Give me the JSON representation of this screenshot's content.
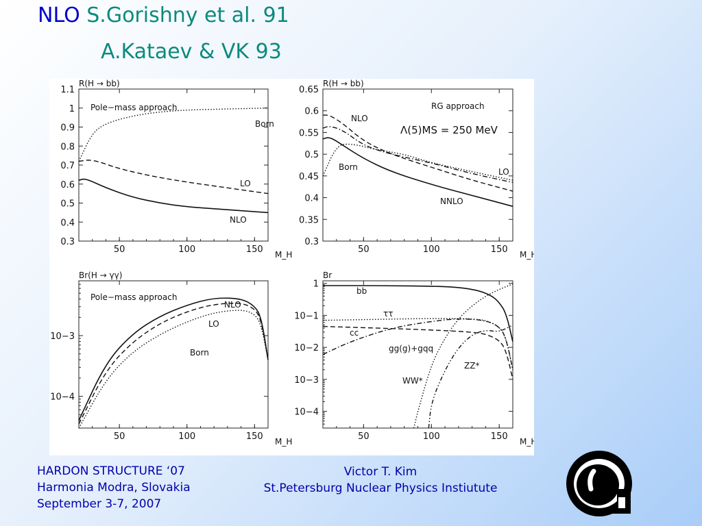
{
  "slide": {
    "title_main": "NLO",
    "title_ref1": "S.Gorishny et al. 91",
    "title_ref2": "A.Kataev & VK 93",
    "footer_left": [
      "HARDON STRUCTURE ‘07",
      "Harmonia Modra, Slovakia",
      "September 3-7, 2007"
    ],
    "footer_center": [
      "Victor T.  Kim",
      "St.Petersburg Nuclear Physics Instiutute"
    ],
    "logo_icon": "institute-logo-icon"
  },
  "chart_data": [
    {
      "type": "line",
      "title": "R(H → bb)",
      "xlabel": "M_H",
      "xlim": [
        20,
        160
      ],
      "ylim": [
        0.3,
        1.1
      ],
      "yscale": "linear",
      "x_ticks": [
        50,
        100,
        150
      ],
      "y_ticks": [
        0.3,
        0.4,
        0.5,
        0.6,
        0.7,
        0.8,
        0.9,
        1.0,
        1.1
      ],
      "y_tick_labels": [
        "0.3",
        "0.4",
        "0.5",
        "0.6",
        "0.7",
        "0.8",
        "0.9",
        "1",
        "1.1"
      ],
      "annotation": "Pole−mass approach",
      "series": [
        {
          "name": "Born",
          "style": "dotted",
          "x": [
            20,
            30,
            40,
            60,
            80,
            100,
            130,
            160
          ],
          "y": [
            0.72,
            0.87,
            0.92,
            0.96,
            0.98,
            0.99,
            0.995,
            1.0
          ]
        },
        {
          "name": "LO",
          "style": "dashed",
          "x": [
            20,
            30,
            50,
            75,
            100,
            130,
            160
          ],
          "y": [
            0.72,
            0.73,
            0.68,
            0.64,
            0.61,
            0.58,
            0.55
          ]
        },
        {
          "name": "NLO",
          "style": "solid",
          "x": [
            20,
            25,
            40,
            60,
            80,
            100,
            130,
            160
          ],
          "y": [
            0.62,
            0.63,
            0.58,
            0.53,
            0.5,
            0.48,
            0.465,
            0.45
          ]
        }
      ]
    },
    {
      "type": "line",
      "title": "R(H → bb)",
      "xlabel": "M_H",
      "xlim": [
        20,
        160
      ],
      "ylim": [
        0.3,
        0.65
      ],
      "yscale": "linear",
      "x_ticks": [
        50,
        100,
        150
      ],
      "y_ticks": [
        0.3,
        0.35,
        0.4,
        0.45,
        0.5,
        0.55,
        0.6,
        0.65
      ],
      "y_tick_labels": [
        "0.3",
        "0.35",
        "0.4",
        "0.45",
        "0.5",
        "0.55",
        "0.6",
        "0.65"
      ],
      "annotation": "RG approach",
      "annotation2": "Λ(5)MS = 250 MeV",
      "series": [
        {
          "name": "NLO",
          "style": "dashed",
          "x": [
            20,
            25,
            35,
            50,
            70,
            100,
            130,
            160
          ],
          "y": [
            0.59,
            0.59,
            0.57,
            0.53,
            0.5,
            0.47,
            0.44,
            0.415
          ]
        },
        {
          "name": "LO",
          "style": "dashdot",
          "x": [
            20,
            25,
            35,
            50,
            70,
            100,
            130,
            160
          ],
          "y": [
            0.56,
            0.565,
            0.555,
            0.52,
            0.5,
            0.48,
            0.455,
            0.435
          ]
        },
        {
          "name": "Born",
          "style": "dotted",
          "x": [
            20,
            30,
            40,
            60,
            80,
            100,
            130,
            160
          ],
          "y": [
            0.45,
            0.52,
            0.525,
            0.51,
            0.5,
            0.48,
            0.46,
            0.44
          ]
        },
        {
          "name": "NNLO",
          "style": "solid",
          "x": [
            20,
            25,
            35,
            50,
            70,
            100,
            130,
            160
          ],
          "y": [
            0.535,
            0.54,
            0.52,
            0.49,
            0.46,
            0.43,
            0.405,
            0.38
          ]
        }
      ]
    },
    {
      "type": "line",
      "title": "Br(H → γγ)",
      "xlabel": "M_H",
      "xlim": [
        20,
        160
      ],
      "ylim": [
        3e-05,
        0.008
      ],
      "yscale": "log",
      "x_ticks": [
        50,
        100,
        150
      ],
      "y_ticks": [
        0.001,
        0.0001
      ],
      "y_tick_labels": [
        "10−3",
        "10−4"
      ],
      "annotation": "Pole−mass approach",
      "series": [
        {
          "name": "NLO",
          "style": "solid",
          "x": [
            20,
            40,
            60,
            80,
            100,
            120,
            140,
            150,
            155,
            160
          ],
          "y": [
            4e-05,
            0.00036,
            0.0011,
            0.0021,
            0.0032,
            0.0042,
            0.0041,
            0.0031,
            0.002,
            0.0004
          ]
        },
        {
          "name": "LO",
          "style": "dashed",
          "x": [
            20,
            40,
            60,
            80,
            100,
            120,
            140,
            150,
            155,
            160
          ],
          "y": [
            3.5e-05,
            0.00027,
            0.0008,
            0.0016,
            0.0025,
            0.0033,
            0.0035,
            0.0028,
            0.0018,
            0.0004
          ]
        },
        {
          "name": "Born",
          "style": "dotted",
          "x": [
            20,
            40,
            60,
            80,
            100,
            120,
            140,
            150,
            155,
            160
          ],
          "y": [
            3e-05,
            0.00019,
            0.00055,
            0.00105,
            0.0017,
            0.0024,
            0.0027,
            0.0023,
            0.0015,
            0.0004
          ]
        }
      ]
    },
    {
      "type": "line",
      "title": "Br",
      "xlabel": "M_H",
      "xlim": [
        20,
        160
      ],
      "ylim": [
        3e-05,
        1.2
      ],
      "yscale": "log",
      "x_ticks": [
        50,
        100,
        150
      ],
      "y_ticks": [
        1,
        0.1,
        0.01,
        0.001,
        0.0001
      ],
      "y_tick_labels": [
        "1",
        "10−1",
        "10−2",
        "10−3",
        "10−4"
      ],
      "series": [
        {
          "name": "bb",
          "style": "solid",
          "x": [
            20,
            60,
            100,
            120,
            135,
            145,
            150,
            155,
            160
          ],
          "y": [
            0.85,
            0.85,
            0.82,
            0.75,
            0.6,
            0.4,
            0.25,
            0.12,
            0.015
          ]
        },
        {
          "name": "ττ",
          "style": "dotted",
          "x": [
            20,
            60,
            100,
            130,
            140,
            150,
            155,
            160
          ],
          "y": [
            0.07,
            0.075,
            0.08,
            0.078,
            0.07,
            0.045,
            0.02,
            0.002
          ]
        },
        {
          "name": "cc",
          "style": "dashed",
          "x": [
            20,
            60,
            100,
            130,
            140,
            150,
            155,
            160
          ],
          "y": [
            0.045,
            0.04,
            0.035,
            0.03,
            0.026,
            0.017,
            0.008,
            0.001
          ]
        },
        {
          "name": "gg(g)+gqq",
          "style": "dashdot",
          "x": [
            20,
            40,
            70,
            100,
            120,
            140,
            150,
            155,
            160
          ],
          "y": [
            0.006,
            0.015,
            0.04,
            0.065,
            0.08,
            0.07,
            0.045,
            0.02,
            0.002
          ]
        },
        {
          "name": "WW*",
          "style": "dotted",
          "x": [
            87,
            90,
            100,
            110,
            120,
            130,
            140,
            150,
            160
          ],
          "y": [
            3e-05,
            0.0001,
            0.003,
            0.02,
            0.08,
            0.2,
            0.4,
            0.65,
            0.95
          ]
        },
        {
          "name": "ZZ*",
          "style": "dashdotdot",
          "x": [
            98,
            100,
            110,
            120,
            130,
            140,
            150,
            160
          ],
          "y": [
            3e-05,
            0.0002,
            0.002,
            0.01,
            0.025,
            0.035,
            0.03,
            0.05
          ]
        }
      ]
    }
  ]
}
